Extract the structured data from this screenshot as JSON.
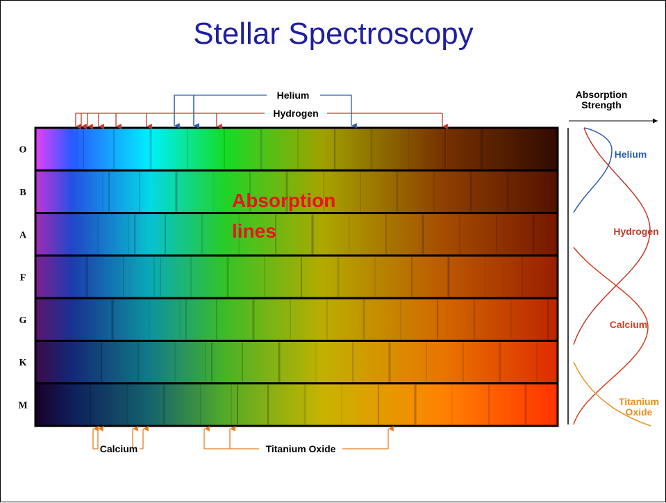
{
  "title": "Stellar Spectroscopy",
  "spectral_classes": [
    "O",
    "B",
    "A",
    "F",
    "G",
    "K",
    "M"
  ],
  "top_markers": [
    {
      "label": "Helium"
    },
    {
      "label": "Hydrogen"
    }
  ],
  "bottom_markers": [
    {
      "label": "Calcium"
    },
    {
      "label": "Titanium Oxide"
    }
  ],
  "annotation": "Absorption lines",
  "strength_panel": {
    "axis_label": "Absorption Strength",
    "curves": [
      "Helium",
      "Hydrogen",
      "Calcium",
      "Titanium Oxide"
    ]
  }
}
